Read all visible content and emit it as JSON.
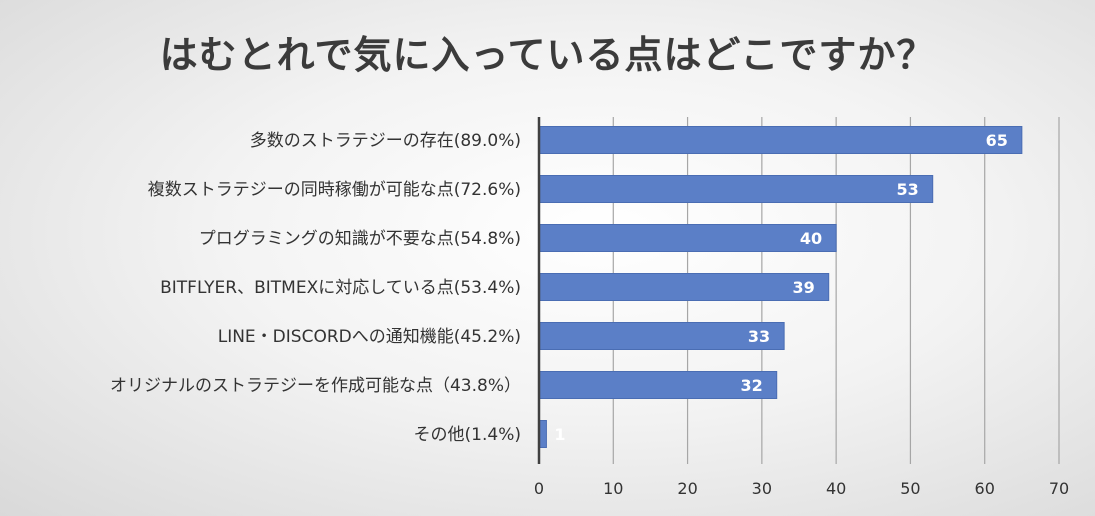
{
  "colors": {
    "bar": "#5b7fc7",
    "bar_stroke": "#4a6db3",
    "grid": "#a6a6a6",
    "axis": "#404040",
    "title": "#3b3b3b",
    "data_label": "#ffffff"
  },
  "chart_data": {
    "type": "bar",
    "orientation": "horizontal",
    "title": "はむとれで気に入っている点はどこですか？",
    "xlabel": "",
    "ylabel": "",
    "categories": [
      "多数のストラテジーの存在(89.0%)",
      "複数ストラテジーの同時稼働が可能な点(72.6%)",
      "プログラミングの知識が不要な点(54.8%)",
      "BITFLYER、BITMEXに対応している点(53.4%)",
      "LINE・DISCORDへの通知機能(45.2%)",
      "オリジナルのストラテジーを作成可能な点（43.8%）",
      "その他(1.4%)"
    ],
    "values": [
      65,
      53,
      40,
      39,
      33,
      32,
      1
    ],
    "xlim": [
      0,
      70
    ],
    "xticks": [
      0,
      10,
      20,
      30,
      40,
      50,
      60,
      70
    ],
    "grid": "vertical",
    "data_labels": true,
    "legend": "none"
  }
}
